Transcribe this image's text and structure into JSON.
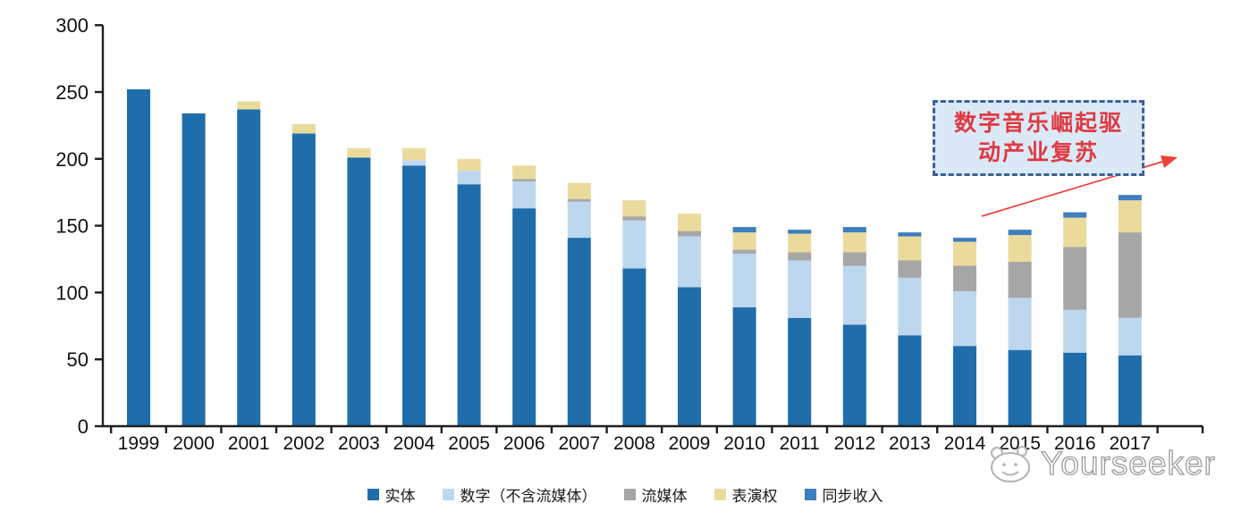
{
  "chart_data": {
    "type": "bar",
    "stacked": true,
    "title": "",
    "categories": [
      "1999",
      "2000",
      "2001",
      "2002",
      "2003",
      "2004",
      "2005",
      "2006",
      "2007",
      "2008",
      "2009",
      "2010",
      "2011",
      "2012",
      "2013",
      "2014",
      "2015",
      "2016",
      "2017"
    ],
    "series": [
      {
        "id": "physical",
        "name": "实体",
        "color": "#1F6DAB",
        "values": [
          252,
          234,
          237,
          219,
          201,
          195,
          181,
          163,
          141,
          118,
          104,
          89,
          81,
          76,
          68,
          60,
          57,
          55,
          53
        ]
      },
      {
        "id": "digital-excl-streaming",
        "name": "数字（不含流媒体）",
        "color": "#BDD7EE",
        "values": [
          0,
          0,
          0,
          0,
          0,
          4,
          10,
          20,
          27,
          36,
          38,
          40,
          43,
          44,
          43,
          41,
          39,
          32,
          28
        ]
      },
      {
        "id": "streaming",
        "name": "流媒体",
        "color": "#A6A6A6",
        "values": [
          0,
          0,
          0,
          0,
          0,
          0,
          0,
          2,
          2,
          3,
          4,
          3,
          6,
          10,
          13,
          19,
          27,
          47,
          64
        ]
      },
      {
        "id": "performance-rights",
        "name": "表演权",
        "color": "#EADB9C",
        "values": [
          0,
          0,
          6,
          7,
          7,
          9,
          9,
          10,
          12,
          12,
          13,
          13,
          14,
          15,
          18,
          18,
          20,
          22,
          24
        ]
      },
      {
        "id": "sync-revenue",
        "name": "同步收入",
        "color": "#3D7EBD",
        "values": [
          0,
          0,
          0,
          0,
          0,
          0,
          0,
          0,
          0,
          0,
          0,
          4,
          3,
          4,
          3,
          3,
          4,
          4,
          4
        ]
      }
    ],
    "ylim": [
      0,
      300
    ],
    "yticks": [
      0,
      50,
      100,
      150,
      200,
      250,
      300
    ],
    "grid": false,
    "legend_position": "bottom"
  },
  "annotation": {
    "text": "数字音乐崛起驱动产业复苏",
    "line1": "数字音乐崛起驱",
    "line2": "动产业复苏",
    "box_fill": "#DBE9F7",
    "border_color": "#3D6096",
    "text_color": "#DF3A42",
    "arrow_color": "#F04038"
  },
  "watermark": {
    "text": "Yourseeker",
    "logo": "yourseeker-mascot-icon"
  }
}
